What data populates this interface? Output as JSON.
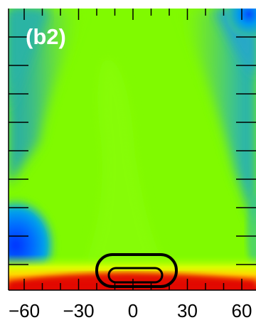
{
  "chart_data": {
    "type": "heatmap",
    "panel_label": "(b2)",
    "xlim": [
      -85,
      85
    ],
    "x_ticks": [
      -60,
      -30,
      0,
      30,
      60
    ],
    "x_tick_labels": [
      "-60",
      "-30",
      "0",
      "30",
      "60"
    ],
    "colormap": [
      "#0022ff",
      "#00a0ff",
      "#28b4a0",
      "#5ad264",
      "#82ff00",
      "#ffff00",
      "#ff8c00",
      "#e00000"
    ],
    "contours": [
      {
        "name": "outer",
        "x_range": [
          -37,
          37
        ]
      },
      {
        "name": "inner",
        "x_range": [
          -25,
          25
        ]
      }
    ],
    "grid": false
  }
}
